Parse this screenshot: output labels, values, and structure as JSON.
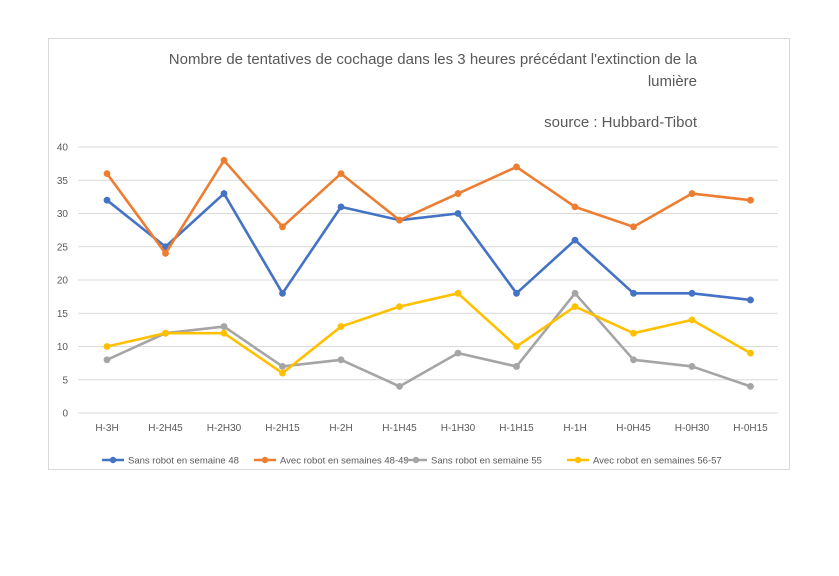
{
  "chart_data": {
    "type": "line",
    "title_line1": "Nombre de tentatives de cochage dans les 3 heures précédant l'extinction de la",
    "title_line2": "lumière",
    "subtitle": "source : Hubbard-Tibot",
    "xlabel": "",
    "ylabel": "",
    "ylim": [
      0,
      40
    ],
    "yticks": [
      0,
      5,
      10,
      15,
      20,
      25,
      30,
      35,
      40
    ],
    "grid": true,
    "legend_position": "bottom",
    "categories": [
      "H-3H",
      "H-2H45",
      "H-2H30",
      "H-2H15",
      "H-2H",
      "H-1H45",
      "H-1H30",
      "H-1H15",
      "H-1H",
      "H-0H45",
      "H-0H30",
      "H-0H15"
    ],
    "series": [
      {
        "name": "Sans robot en semaine 48",
        "color": "#4472c4",
        "values": [
          32,
          25,
          33,
          18,
          31,
          29,
          30,
          18,
          26,
          18,
          18,
          17
        ]
      },
      {
        "name": "Avec robot en semaines 48-49",
        "color": "#ed7d31",
        "values": [
          36,
          24,
          38,
          28,
          36,
          29,
          33,
          37,
          31,
          28,
          33,
          32
        ]
      },
      {
        "name": "Sans robot en semaine 55",
        "color": "#a5a5a5",
        "values": [
          8,
          12,
          13,
          7,
          8,
          4,
          9,
          7,
          18,
          8,
          7,
          4
        ]
      },
      {
        "name": "Avec robot en semaines 56-57",
        "color": "#ffc000",
        "values": [
          10,
          12,
          12,
          6,
          13,
          16,
          18,
          10,
          16,
          12,
          14,
          9
        ]
      }
    ]
  }
}
